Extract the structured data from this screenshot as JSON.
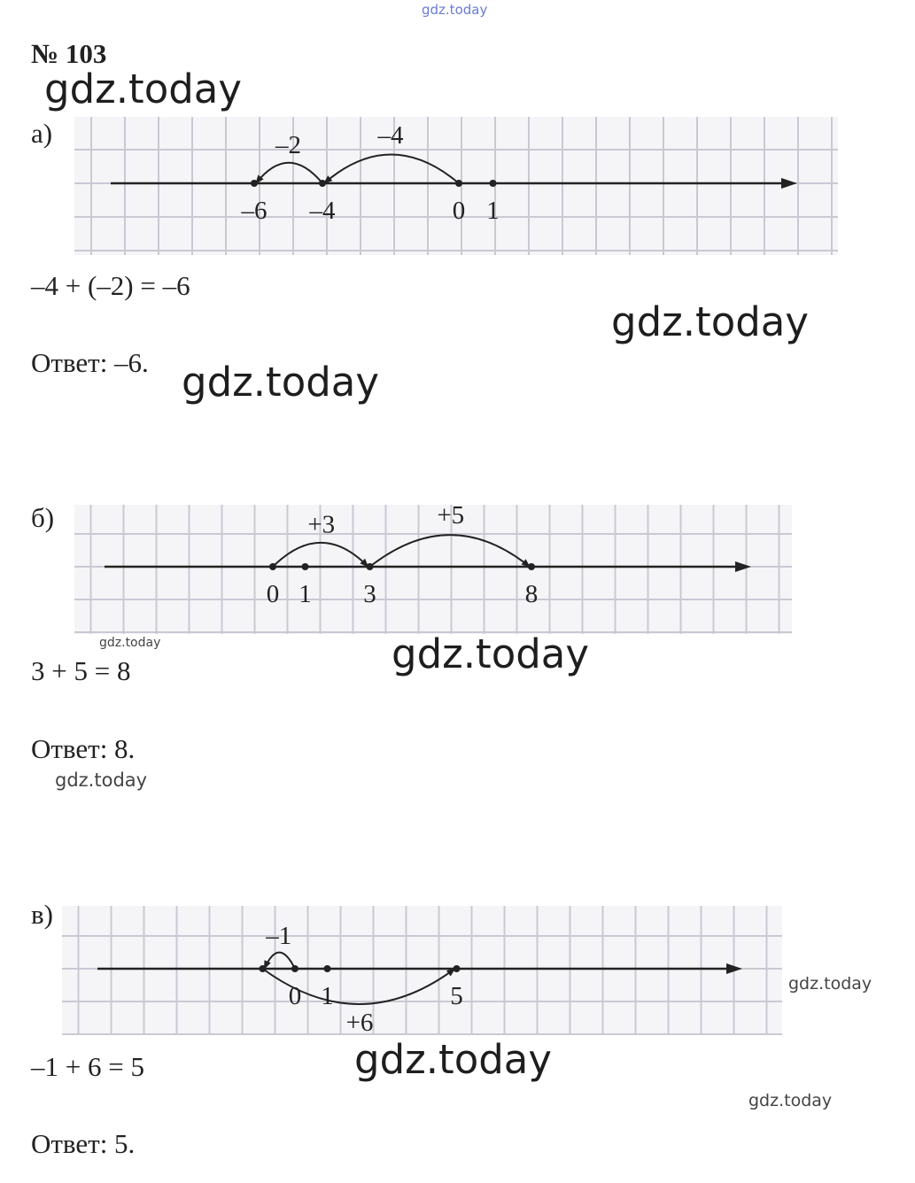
{
  "watermarks": {
    "top": "gdz.today",
    "big": [
      "gdz.today",
      "gdz.today",
      "gdz.today",
      "gdz.today",
      "gdz.today"
    ],
    "small": [
      "gdz.today",
      "gdz.today",
      "gdz.today",
      "gdz.today"
    ]
  },
  "problem_number": "№ 103",
  "parts": [
    {
      "label": "а)",
      "equation": "–4 + (–2) = –6",
      "answer": "Ответ: –6.",
      "diagram": {
        "points": [
          {
            "value": -6,
            "label": "–6"
          },
          {
            "value": -4,
            "label": "–4"
          },
          {
            "value": 0,
            "label": "0"
          },
          {
            "value": 1,
            "label": "1"
          }
        ],
        "arcs": [
          {
            "from": 0,
            "to": -4,
            "label": "–4",
            "side": "above"
          },
          {
            "from": -4,
            "to": -6,
            "label": "–2",
            "side": "above"
          }
        ]
      }
    },
    {
      "label": "б)",
      "equation": "3 + 5 = 8",
      "answer": "Ответ: 8.",
      "diagram": {
        "points": [
          {
            "value": 0,
            "label": "0"
          },
          {
            "value": 1,
            "label": "1"
          },
          {
            "value": 3,
            "label": "3"
          },
          {
            "value": 8,
            "label": "8"
          }
        ],
        "arcs": [
          {
            "from": 0,
            "to": 3,
            "label": "+3",
            "side": "above"
          },
          {
            "from": 3,
            "to": 8,
            "label": "+5",
            "side": "above"
          }
        ]
      }
    },
    {
      "label": "в)",
      "equation": "–1 + 6 = 5",
      "answer": "Ответ: 5.",
      "diagram": {
        "points": [
          {
            "value": -1,
            "label": ""
          },
          {
            "value": 0,
            "label": "0"
          },
          {
            "value": 1,
            "label": "1"
          },
          {
            "value": 5,
            "label": "5"
          }
        ],
        "arcs": [
          {
            "from": 0,
            "to": -1,
            "label": "–1",
            "side": "above"
          },
          {
            "from": -1,
            "to": 5,
            "label": "+6",
            "side": "below"
          }
        ]
      }
    }
  ]
}
